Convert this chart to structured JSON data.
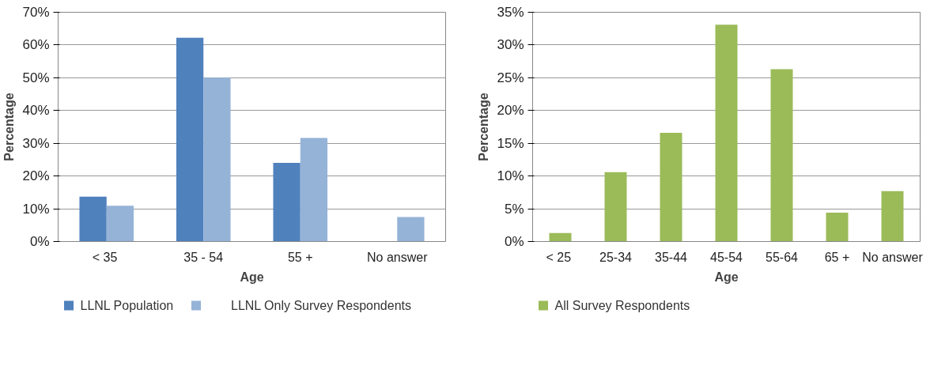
{
  "chart_data": [
    {
      "type": "bar",
      "xlabel": "Age",
      "ylabel": "Percentage",
      "categories": [
        "<  35",
        "35 - 54",
        "55 +",
        "No answer"
      ],
      "series": [
        {
          "name": "LLNL Population",
          "color": "#4f81bd",
          "values": [
            13.7,
            62.2,
            24.0,
            null
          ]
        },
        {
          "name": "LLNL Only Survey Respondents",
          "color": "#95b3d7",
          "values": [
            10.9,
            50.0,
            31.6,
            7.5
          ]
        }
      ],
      "ylim": [
        0,
        70
      ],
      "yticks": [
        {
          "value": 0,
          "label": "0%"
        },
        {
          "value": 10,
          "label": "10%"
        },
        {
          "value": 20,
          "label": "20%"
        },
        {
          "value": 30,
          "label": "30%"
        },
        {
          "value": 40,
          "label": "40%"
        },
        {
          "value": 50,
          "label": "50%"
        },
        {
          "value": 60,
          "label": "60%"
        },
        {
          "value": 70,
          "label": "70%"
        }
      ],
      "grid": "y",
      "legend": "bottom"
    },
    {
      "type": "bar",
      "xlabel": "Age",
      "ylabel": "Percentage",
      "categories": [
        "<  25",
        "25-34",
        "35-44",
        "45-54",
        "55-64",
        "65 +",
        "No answer"
      ],
      "series": [
        {
          "name": "All Survey Respondents",
          "color": "#9bbb59",
          "values": [
            1.3,
            10.6,
            16.6,
            33.1,
            26.3,
            4.4,
            7.7
          ]
        }
      ],
      "ylim": [
        0,
        35
      ],
      "yticks": [
        {
          "value": 0,
          "label": "0%"
        },
        {
          "value": 5,
          "label": "5%"
        },
        {
          "value": 10,
          "label": "10%"
        },
        {
          "value": 15,
          "label": "15%"
        },
        {
          "value": 20,
          "label": "20%"
        },
        {
          "value": 25,
          "label": "25%"
        },
        {
          "value": 30,
          "label": "30%"
        },
        {
          "value": 35,
          "label": "35%"
        }
      ],
      "grid": "y",
      "legend": "bottom"
    }
  ]
}
